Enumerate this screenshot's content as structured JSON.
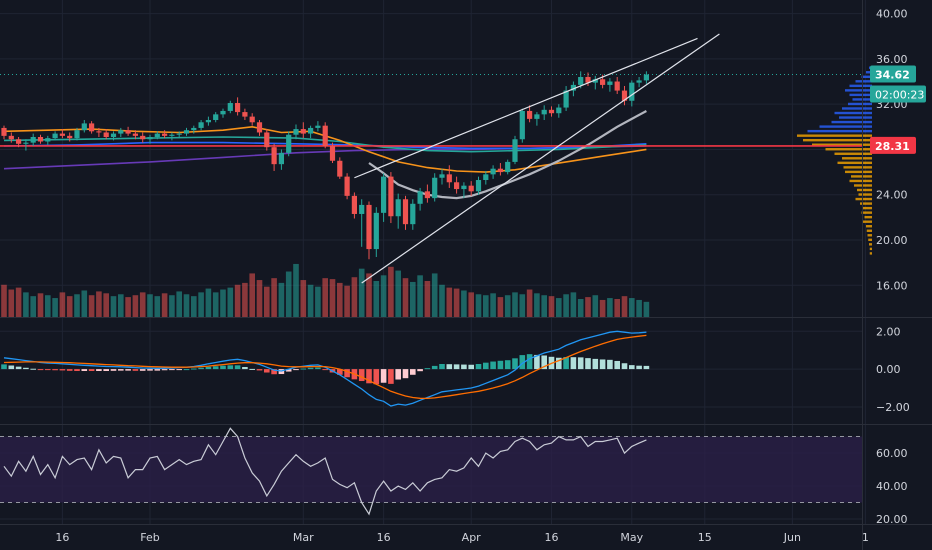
{
  "chart_data": {
    "type": "candlestick",
    "colors": {
      "background": "#131722",
      "grid": "#1f2433",
      "axis_text": "#d1d4dc",
      "up": "#26a69a",
      "down": "#ef5350",
      "price_tag": "#26a69a",
      "support_line": "#f23645",
      "ma_orange": "#f7931a",
      "ma_teal": "#26a69a",
      "ma_blue": "#2962ff",
      "ma_purple": "#673ab7",
      "ma_grey": "#b2b5be",
      "channel": "#e0e3eb",
      "macd_line": "#2196f3",
      "signal_line": "#ff6d00",
      "rsi_line": "#c9ccd6",
      "rsi_band": "#2a1f47"
    },
    "x_tick_labels": [
      {
        "label": "16",
        "i": 8
      },
      {
        "label": "Feb",
        "i": 20
      },
      {
        "label": "Mar",
        "i": 41
      },
      {
        "label": "16",
        "i": 52
      },
      {
        "label": "Apr",
        "i": 64
      },
      {
        "label": "16",
        "i": 75
      },
      {
        "label": "May",
        "i": 86
      },
      {
        "label": "15",
        "i": 96
      },
      {
        "label": "Jun",
        "i": 108
      },
      {
        "label": "1",
        "i": 118
      }
    ],
    "price_axis": {
      "ticks": [
        "40.00",
        "36.00",
        "32.00",
        "28.00",
        "24.00",
        "20.00",
        "16.00"
      ],
      "tick_values": [
        40,
        36,
        32,
        28,
        24,
        20,
        16
      ],
      "range": [
        13.2,
        41.2
      ],
      "last_price": 34.62,
      "last_price_label": "34.62",
      "countdown_label": "02:00:23",
      "level": 28.31,
      "level_label": "28.31"
    },
    "macd_axis": {
      "ticks": [
        "2.00",
        "0.00",
        "−2.00"
      ],
      "tick_values": [
        2,
        0,
        -2
      ],
      "range": [
        -2.9,
        2.7
      ]
    },
    "rsi_axis": {
      "ticks": [
        "60.00",
        "40.00",
        "20.00"
      ],
      "tick_values": [
        60,
        40,
        20
      ],
      "range": [
        17,
        77
      ],
      "upper_band": 70,
      "lower_band": 30
    },
    "candles": [
      [
        29.9,
        30.1,
        28.9,
        29.2
      ],
      [
        29.2,
        29.5,
        28.6,
        28.9
      ],
      [
        28.9,
        29.1,
        28.2,
        28.5
      ],
      [
        28.5,
        28.9,
        27.9,
        28.6
      ],
      [
        28.6,
        29.4,
        28.3,
        29.1
      ],
      [
        29.1,
        29.3,
        28.5,
        28.7
      ],
      [
        28.7,
        29.2,
        28.4,
        29.0
      ],
      [
        29.0,
        29.6,
        28.8,
        29.4
      ],
      [
        29.4,
        29.8,
        29.0,
        29.2
      ],
      [
        29.2,
        29.5,
        28.7,
        29.0
      ],
      [
        29.0,
        29.9,
        28.8,
        29.7
      ],
      [
        29.7,
        30.6,
        29.5,
        30.3
      ],
      [
        30.3,
        30.5,
        29.4,
        29.6
      ],
      [
        29.6,
        29.9,
        29.1,
        29.5
      ],
      [
        29.5,
        29.8,
        28.9,
        29.1
      ],
      [
        29.1,
        29.6,
        28.8,
        29.4
      ],
      [
        29.4,
        29.9,
        29.1,
        29.7
      ],
      [
        29.7,
        30.0,
        29.2,
        29.4
      ],
      [
        29.4,
        29.7,
        28.9,
        29.2
      ],
      [
        29.2,
        29.5,
        28.6,
        28.9
      ],
      [
        28.9,
        29.3,
        28.5,
        29.1
      ],
      [
        29.1,
        29.6,
        28.9,
        29.4
      ],
      [
        29.4,
        29.7,
        29.0,
        29.2
      ],
      [
        29.2,
        29.5,
        28.8,
        29.3
      ],
      [
        29.3,
        29.6,
        29.0,
        29.4
      ],
      [
        29.4,
        29.9,
        29.2,
        29.7
      ],
      [
        29.7,
        30.1,
        29.4,
        29.9
      ],
      [
        29.9,
        30.6,
        29.7,
        30.4
      ],
      [
        30.4,
        30.9,
        30.1,
        30.6
      ],
      [
        30.6,
        31.3,
        30.4,
        31.1
      ],
      [
        31.1,
        31.6,
        30.8,
        31.4
      ],
      [
        31.4,
        32.3,
        31.2,
        32.1
      ],
      [
        32.1,
        32.6,
        31.0,
        31.3
      ],
      [
        31.3,
        31.6,
        30.6,
        30.9
      ],
      [
        30.9,
        31.2,
        30.1,
        30.4
      ],
      [
        30.4,
        30.6,
        29.2,
        29.5
      ],
      [
        29.5,
        29.8,
        27.9,
        28.2
      ],
      [
        28.2,
        28.5,
        26.1,
        26.7
      ],
      [
        26.7,
        28.0,
        26.2,
        27.7
      ],
      [
        27.7,
        29.6,
        27.4,
        29.3
      ],
      [
        29.3,
        30.2,
        28.9,
        29.8
      ],
      [
        29.8,
        30.4,
        29.0,
        29.4
      ],
      [
        29.4,
        30.1,
        29.0,
        29.9
      ],
      [
        29.9,
        30.5,
        29.6,
        30.1
      ],
      [
        30.1,
        30.4,
        28.1,
        28.3
      ],
      [
        28.3,
        28.6,
        26.8,
        27.0
      ],
      [
        27.0,
        27.3,
        25.4,
        25.6
      ],
      [
        25.6,
        25.9,
        23.6,
        23.9
      ],
      [
        23.9,
        24.2,
        21.9,
        22.3
      ],
      [
        22.3,
        23.6,
        19.4,
        23.1
      ],
      [
        23.1,
        23.4,
        18.3,
        19.2
      ],
      [
        19.2,
        22.9,
        18.5,
        22.4
      ],
      [
        22.4,
        25.9,
        21.6,
        25.6
      ],
      [
        25.6,
        26.0,
        21.5,
        22.1
      ],
      [
        22.1,
        24.1,
        21.0,
        23.6
      ],
      [
        23.6,
        23.9,
        20.9,
        21.4
      ],
      [
        21.4,
        23.6,
        20.9,
        23.2
      ],
      [
        23.2,
        24.6,
        22.6,
        24.3
      ],
      [
        24.3,
        24.9,
        23.3,
        23.7
      ],
      [
        23.7,
        25.9,
        23.4,
        25.5
      ],
      [
        25.5,
        26.3,
        24.9,
        25.8
      ],
      [
        25.8,
        26.6,
        24.6,
        25.1
      ],
      [
        25.1,
        25.6,
        24.1,
        24.5
      ],
      [
        24.5,
        25.1,
        23.7,
        24.8
      ],
      [
        24.8,
        25.2,
        23.9,
        24.3
      ],
      [
        24.3,
        25.6,
        24.0,
        25.3
      ],
      [
        25.3,
        26.1,
        24.9,
        25.8
      ],
      [
        25.8,
        26.6,
        25.4,
        26.3
      ],
      [
        26.3,
        26.8,
        25.7,
        26.0
      ],
      [
        26.0,
        27.1,
        25.8,
        26.9
      ],
      [
        26.9,
        29.2,
        26.7,
        28.9
      ],
      [
        28.9,
        31.6,
        28.6,
        31.4
      ],
      [
        31.4,
        31.9,
        30.4,
        30.7
      ],
      [
        30.7,
        31.3,
        30.1,
        31.1
      ],
      [
        31.1,
        31.9,
        30.6,
        31.5
      ],
      [
        31.5,
        31.8,
        30.9,
        31.2
      ],
      [
        31.2,
        32.0,
        30.8,
        31.7
      ],
      [
        31.7,
        33.6,
        31.4,
        33.2
      ],
      [
        33.2,
        34.0,
        32.7,
        33.7
      ],
      [
        33.7,
        34.9,
        33.4,
        34.4
      ],
      [
        34.4,
        34.8,
        33.6,
        33.9
      ],
      [
        33.9,
        34.5,
        33.3,
        34.2
      ],
      [
        34.2,
        34.6,
        33.4,
        33.7
      ],
      [
        33.7,
        34.3,
        33.1,
        34.0
      ],
      [
        34.0,
        34.4,
        32.9,
        33.2
      ],
      [
        33.2,
        33.6,
        31.9,
        32.3
      ],
      [
        32.3,
        34.1,
        31.8,
        33.9
      ],
      [
        33.9,
        34.4,
        33.5,
        34.1
      ],
      [
        34.1,
        34.9,
        33.8,
        34.62
      ]
    ],
    "volumes": [
      3.4,
      2.9,
      3.1,
      2.6,
      2.2,
      2.5,
      2.3,
      2.0,
      2.6,
      2.2,
      2.4,
      2.8,
      2.3,
      2.7,
      2.5,
      2.2,
      2.4,
      2.1,
      2.3,
      2.6,
      2.4,
      2.2,
      2.5,
      2.3,
      2.7,
      2.4,
      2.2,
      2.6,
      3.0,
      2.6,
      2.9,
      3.1,
      3.4,
      3.6,
      4.6,
      3.9,
      3.2,
      4.1,
      3.6,
      4.8,
      5.6,
      3.9,
      3.4,
      3.2,
      4.1,
      4.0,
      3.6,
      3.3,
      4.2,
      5.1,
      4.6,
      3.8,
      4.4,
      5.3,
      4.9,
      4.1,
      3.7,
      4.4,
      3.8,
      4.6,
      3.4,
      3.1,
      3.0,
      2.8,
      2.6,
      2.4,
      2.3,
      2.5,
      2.1,
      2.3,
      2.6,
      2.4,
      2.9,
      2.5,
      2.3,
      2.2,
      2.0,
      2.4,
      2.6,
      1.9,
      2.1,
      2.3,
      1.8,
      2.0,
      1.9,
      2.2,
      2.0,
      1.8,
      1.6
    ],
    "volume_max": 9.5,
    "rsi": [
      52,
      46,
      55,
      49,
      58,
      47,
      53,
      45,
      58,
      53,
      56,
      57,
      50,
      62,
      54,
      58,
      57,
      45,
      50,
      50,
      57,
      58,
      50,
      53,
      56,
      53,
      55,
      56,
      65,
      59,
      67,
      75,
      70,
      57,
      48,
      43,
      34,
      41,
      49,
      54,
      59,
      55,
      52,
      54,
      57,
      44,
      41,
      39,
      42,
      30,
      23,
      37,
      43,
      37,
      40,
      38,
      42,
      37,
      42,
      44,
      45,
      50,
      49,
      51,
      57,
      52,
      60,
      57,
      61,
      62,
      67,
      69,
      67,
      62,
      65,
      66,
      70,
      68,
      68,
      70,
      64,
      67,
      67,
      68,
      69,
      60,
      64,
      66,
      68
    ],
    "macd": [
      0.6,
      0.55,
      0.5,
      0.45,
      0.4,
      0.35,
      0.32,
      0.3,
      0.28,
      0.25,
      0.22,
      0.2,
      0.18,
      0.16,
      0.14,
      0.13,
      0.12,
      0.1,
      0.08,
      0.06,
      0.05,
      0.04,
      0.05,
      0.06,
      0.08,
      0.1,
      0.14,
      0.2,
      0.28,
      0.35,
      0.42,
      0.48,
      0.52,
      0.45,
      0.35,
      0.25,
      0.1,
      -0.05,
      -0.1,
      0.0,
      0.1,
      0.15,
      0.2,
      0.22,
      0.1,
      -0.1,
      -0.3,
      -0.55,
      -0.8,
      -1.05,
      -1.35,
      -1.6,
      -1.7,
      -1.95,
      -1.85,
      -1.9,
      -1.8,
      -1.65,
      -1.5,
      -1.35,
      -1.2,
      -1.15,
      -1.1,
      -1.05,
      -1.0,
      -0.9,
      -0.75,
      -0.6,
      -0.45,
      -0.3,
      -0.05,
      0.3,
      0.55,
      0.7,
      0.85,
      0.95,
      1.05,
      1.25,
      1.4,
      1.55,
      1.65,
      1.75,
      1.85,
      1.95,
      2.0,
      1.95,
      1.9,
      1.92,
      1.95
    ],
    "signal": [
      0.35,
      0.36,
      0.37,
      0.38,
      0.38,
      0.38,
      0.37,
      0.36,
      0.35,
      0.34,
      0.32,
      0.3,
      0.28,
      0.26,
      0.24,
      0.22,
      0.2,
      0.18,
      0.17,
      0.15,
      0.13,
      0.12,
      0.11,
      0.1,
      0.1,
      0.1,
      0.11,
      0.13,
      0.16,
      0.2,
      0.24,
      0.28,
      0.32,
      0.34,
      0.34,
      0.32,
      0.28,
      0.22,
      0.16,
      0.13,
      0.12,
      0.12,
      0.13,
      0.14,
      0.13,
      0.08,
      0.0,
      -0.12,
      -0.26,
      -0.42,
      -0.6,
      -0.8,
      -0.98,
      -1.17,
      -1.3,
      -1.42,
      -1.5,
      -1.54,
      -1.55,
      -1.52,
      -1.47,
      -1.41,
      -1.35,
      -1.29,
      -1.23,
      -1.17,
      -1.09,
      -1.0,
      -0.89,
      -0.77,
      -0.62,
      -0.44,
      -0.24,
      -0.05,
      0.13,
      0.3,
      0.45,
      0.61,
      0.77,
      0.93,
      1.07,
      1.21,
      1.34,
      1.46,
      1.57,
      1.64,
      1.69,
      1.74,
      1.78
    ],
    "ma_grey": [
      [
        50,
        26.8
      ],
      [
        52,
        25.9
      ],
      [
        54,
        24.9
      ],
      [
        56,
        24.4
      ],
      [
        58,
        24.0
      ],
      [
        60,
        23.8
      ],
      [
        62,
        23.7
      ],
      [
        64,
        23.9
      ],
      [
        66,
        24.3
      ],
      [
        68,
        24.8
      ],
      [
        70,
        25.3
      ],
      [
        72,
        25.8
      ],
      [
        74,
        26.4
      ],
      [
        76,
        27.0
      ],
      [
        78,
        27.7
      ],
      [
        80,
        28.4
      ],
      [
        82,
        29.2
      ],
      [
        84,
        30.0
      ],
      [
        86,
        30.7
      ],
      [
        88,
        31.4
      ]
    ],
    "ma_orange": [
      [
        0,
        29.6
      ],
      [
        6,
        29.7
      ],
      [
        12,
        29.8
      ],
      [
        18,
        29.6
      ],
      [
        24,
        29.5
      ],
      [
        30,
        29.7
      ],
      [
        34,
        30.0
      ],
      [
        38,
        29.5
      ],
      [
        42,
        29.6
      ],
      [
        46,
        28.8
      ],
      [
        50,
        27.8
      ],
      [
        54,
        26.9
      ],
      [
        58,
        26.4
      ],
      [
        62,
        26.1
      ],
      [
        66,
        26.0
      ],
      [
        70,
        26.2
      ],
      [
        74,
        26.6
      ],
      [
        78,
        27.0
      ],
      [
        82,
        27.4
      ],
      [
        86,
        27.8
      ],
      [
        88,
        28.0
      ]
    ],
    "ma_teal": [
      [
        0,
        28.8
      ],
      [
        10,
        28.9
      ],
      [
        20,
        29.0
      ],
      [
        30,
        29.1
      ],
      [
        40,
        29.0
      ],
      [
        46,
        28.7
      ],
      [
        52,
        28.2
      ],
      [
        58,
        27.9
      ],
      [
        64,
        27.8
      ],
      [
        70,
        27.9
      ],
      [
        76,
        28.0
      ],
      [
        82,
        28.2
      ],
      [
        88,
        28.4
      ]
    ],
    "ma_blue": [
      [
        0,
        28.3
      ],
      [
        10,
        28.4
      ],
      [
        20,
        28.6
      ],
      [
        30,
        28.6
      ],
      [
        40,
        28.5
      ],
      [
        48,
        28.4
      ],
      [
        56,
        28.2
      ],
      [
        64,
        28.1
      ],
      [
        72,
        28.1
      ],
      [
        80,
        28.2
      ],
      [
        88,
        28.5
      ]
    ],
    "ma_purple": [
      [
        0,
        26.3
      ],
      [
        10,
        26.6
      ],
      [
        20,
        26.9
      ],
      [
        30,
        27.3
      ],
      [
        40,
        27.7
      ],
      [
        48,
        27.9
      ],
      [
        56,
        28.0
      ],
      [
        64,
        28.0
      ],
      [
        72,
        28.1
      ],
      [
        80,
        28.2
      ],
      [
        88,
        28.3
      ]
    ],
    "channel_lines": [
      {
        "i1": 48,
        "p1": 25.5,
        "i2": 95,
        "p2": 37.8
      },
      {
        "i1": 49,
        "p1": 16.2,
        "i2": 98,
        "p2": 38.2
      }
    ],
    "volume_profile": [
      [
        35.2,
        0.04,
        1
      ],
      [
        34.8,
        0.08,
        1
      ],
      [
        34.4,
        0.14,
        1
      ],
      [
        34.0,
        0.22,
        1
      ],
      [
        33.6,
        0.3,
        1
      ],
      [
        33.2,
        0.36,
        1
      ],
      [
        32.8,
        0.3,
        1
      ],
      [
        32.4,
        0.26,
        1
      ],
      [
        32.0,
        0.32,
        1
      ],
      [
        31.6,
        0.4,
        1
      ],
      [
        31.2,
        0.5,
        1
      ],
      [
        30.8,
        0.44,
        1
      ],
      [
        30.4,
        0.54,
        1
      ],
      [
        30.0,
        0.7,
        1
      ],
      [
        29.6,
        0.86,
        1
      ],
      [
        29.2,
        1.0,
        0
      ],
      [
        28.8,
        0.92,
        0
      ],
      [
        28.4,
        0.8,
        0
      ],
      [
        28.0,
        0.62,
        0
      ],
      [
        27.6,
        0.5,
        0
      ],
      [
        27.2,
        0.4,
        0
      ],
      [
        26.8,
        0.46,
        0
      ],
      [
        26.4,
        0.38,
        0
      ],
      [
        26.0,
        0.36,
        0
      ],
      [
        25.6,
        0.28,
        0
      ],
      [
        25.2,
        0.3,
        0
      ],
      [
        24.8,
        0.24,
        0
      ],
      [
        24.4,
        0.2,
        0
      ],
      [
        24.0,
        0.18,
        0
      ],
      [
        23.6,
        0.22,
        0
      ],
      [
        23.2,
        0.16,
        0
      ],
      [
        22.8,
        0.12,
        0
      ],
      [
        22.4,
        0.14,
        0
      ],
      [
        22.0,
        0.1,
        0
      ],
      [
        21.6,
        0.12,
        0
      ],
      [
        21.2,
        0.08,
        0
      ],
      [
        20.8,
        0.07,
        0
      ],
      [
        20.4,
        0.06,
        0
      ],
      [
        20.0,
        0.05,
        0
      ],
      [
        19.6,
        0.04,
        0
      ],
      [
        19.2,
        0.03,
        0
      ],
      [
        18.8,
        0.03,
        0
      ]
    ]
  }
}
